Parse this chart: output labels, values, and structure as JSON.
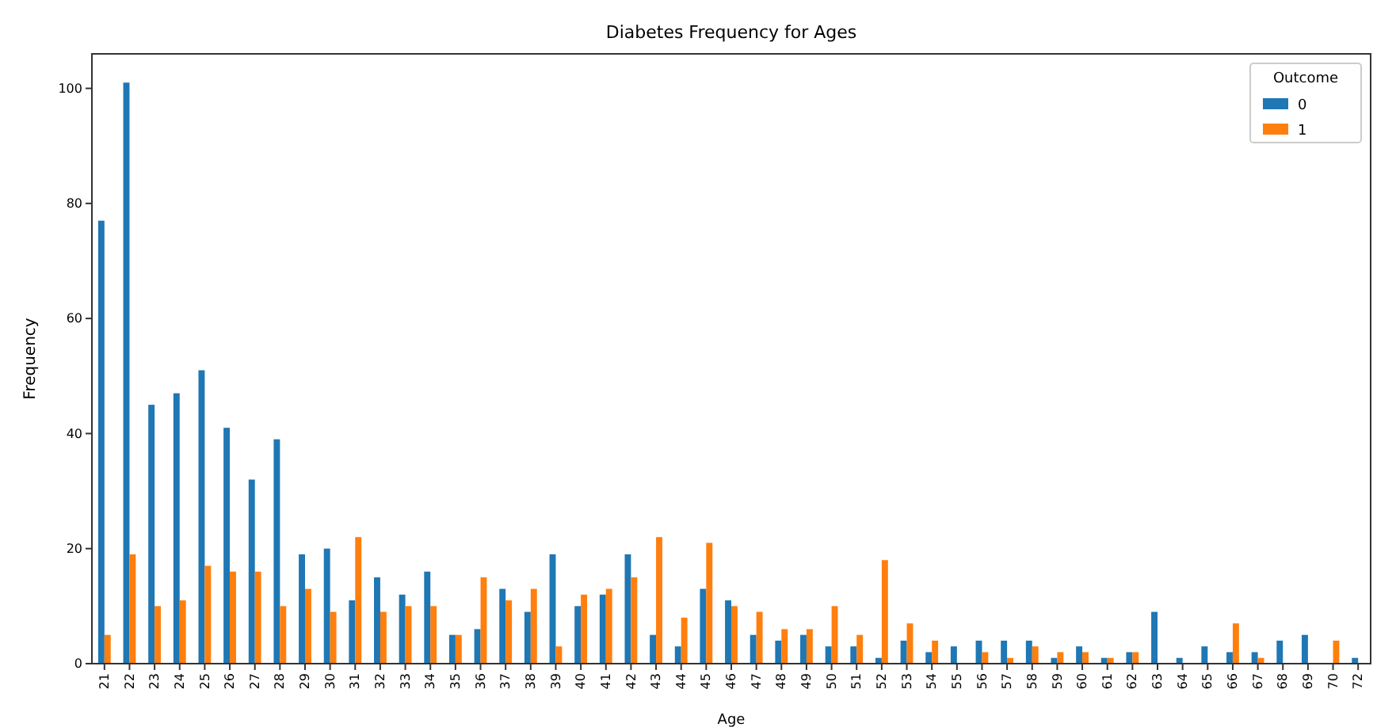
{
  "chart_data": {
    "type": "bar",
    "title": "Diabetes Frequency for Ages",
    "xlabel": "Age",
    "ylabel": "Frequency",
    "legend_title": "Outcome",
    "legend": "top right",
    "categories": [
      "21",
      "22",
      "23",
      "24",
      "25",
      "26",
      "27",
      "28",
      "29",
      "30",
      "31",
      "32",
      "33",
      "34",
      "35",
      "36",
      "37",
      "38",
      "39",
      "40",
      "41",
      "42",
      "43",
      "44",
      "45",
      "46",
      "47",
      "48",
      "49",
      "50",
      "51",
      "52",
      "53",
      "54",
      "55",
      "56",
      "57",
      "58",
      "59",
      "60",
      "61",
      "62",
      "63",
      "64",
      "65",
      "66",
      "67",
      "68",
      "69",
      "70",
      "72"
    ],
    "series": [
      {
        "name": "0",
        "color": "#1f77b4",
        "values": [
          77,
          101,
          45,
          47,
          51,
          41,
          32,
          39,
          19,
          20,
          11,
          15,
          12,
          16,
          5,
          6,
          13,
          9,
          19,
          10,
          12,
          19,
          5,
          3,
          13,
          11,
          5,
          4,
          5,
          3,
          3,
          1,
          4,
          2,
          3,
          4,
          4,
          4,
          1,
          3,
          1,
          2,
          9,
          1,
          3,
          2,
          2,
          4,
          5,
          0,
          1
        ]
      },
      {
        "name": "1",
        "color": "#ff7f0e",
        "values": [
          5,
          19,
          10,
          11,
          17,
          16,
          16,
          10,
          13,
          9,
          22,
          9,
          10,
          10,
          5,
          15,
          11,
          13,
          3,
          12,
          13,
          15,
          22,
          8,
          21,
          10,
          9,
          6,
          6,
          10,
          5,
          18,
          7,
          4,
          0,
          2,
          1,
          3,
          2,
          2,
          1,
          2,
          0,
          0,
          0,
          7,
          1,
          0,
          0,
          4,
          0
        ]
      }
    ],
    "ylim": [
      0,
      106
    ],
    "yticks": [
      0,
      20,
      40,
      60,
      80,
      100
    ],
    "grid": false
  }
}
